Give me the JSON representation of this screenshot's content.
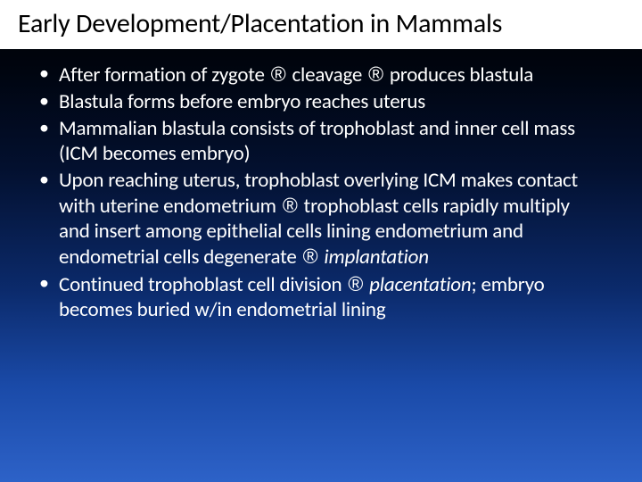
{
  "slide": {
    "background": {
      "gradient_stops": [
        "#000000",
        "#000510",
        "#03102f",
        "#0b2a6b",
        "#1a4aa8",
        "#2d62c8"
      ]
    },
    "title_band_bg": "#ffffff",
    "title_color": "#000000",
    "body_text_color": "#ffffff",
    "title_fontsize": 30,
    "bullet_fontsize": 23,
    "font_family": "Calibri",
    "title": "Early Development/Placentation in Mammals",
    "bullets": [
      {
        "segments": [
          {
            "text": "After formation of zygote "
          },
          {
            "text": "®",
            "arrow": true
          },
          {
            "text": " cleavage "
          },
          {
            "text": "®",
            "arrow": true
          },
          {
            "text": " produces blastula"
          }
        ]
      },
      {
        "segments": [
          {
            "text": "Blastula forms before embryo reaches uterus"
          }
        ]
      },
      {
        "segments": [
          {
            "text": "Mammalian blastula consists of trophoblast and inner cell mass (ICM becomes embryo)"
          }
        ]
      },
      {
        "segments": [
          {
            "text": "Upon reaching uterus, trophoblast overlying ICM makes contact with uterine endometrium "
          },
          {
            "text": "®",
            "arrow": true
          },
          {
            "text": " trophoblast cells rapidly multiply and insert among epithelial cells lining endometrium and endometrial cells degenerate "
          },
          {
            "text": "®",
            "arrow": true
          },
          {
            "text": " "
          },
          {
            "text": "implantation",
            "italic": true
          }
        ]
      },
      {
        "segments": [
          {
            "text": "Continued trophoblast cell division "
          },
          {
            "text": "®",
            "arrow": true
          },
          {
            "text": " "
          },
          {
            "text": "placentation",
            "italic": true
          },
          {
            "text": "; embryo becomes buried w/in endometrial lining"
          }
        ]
      }
    ]
  }
}
